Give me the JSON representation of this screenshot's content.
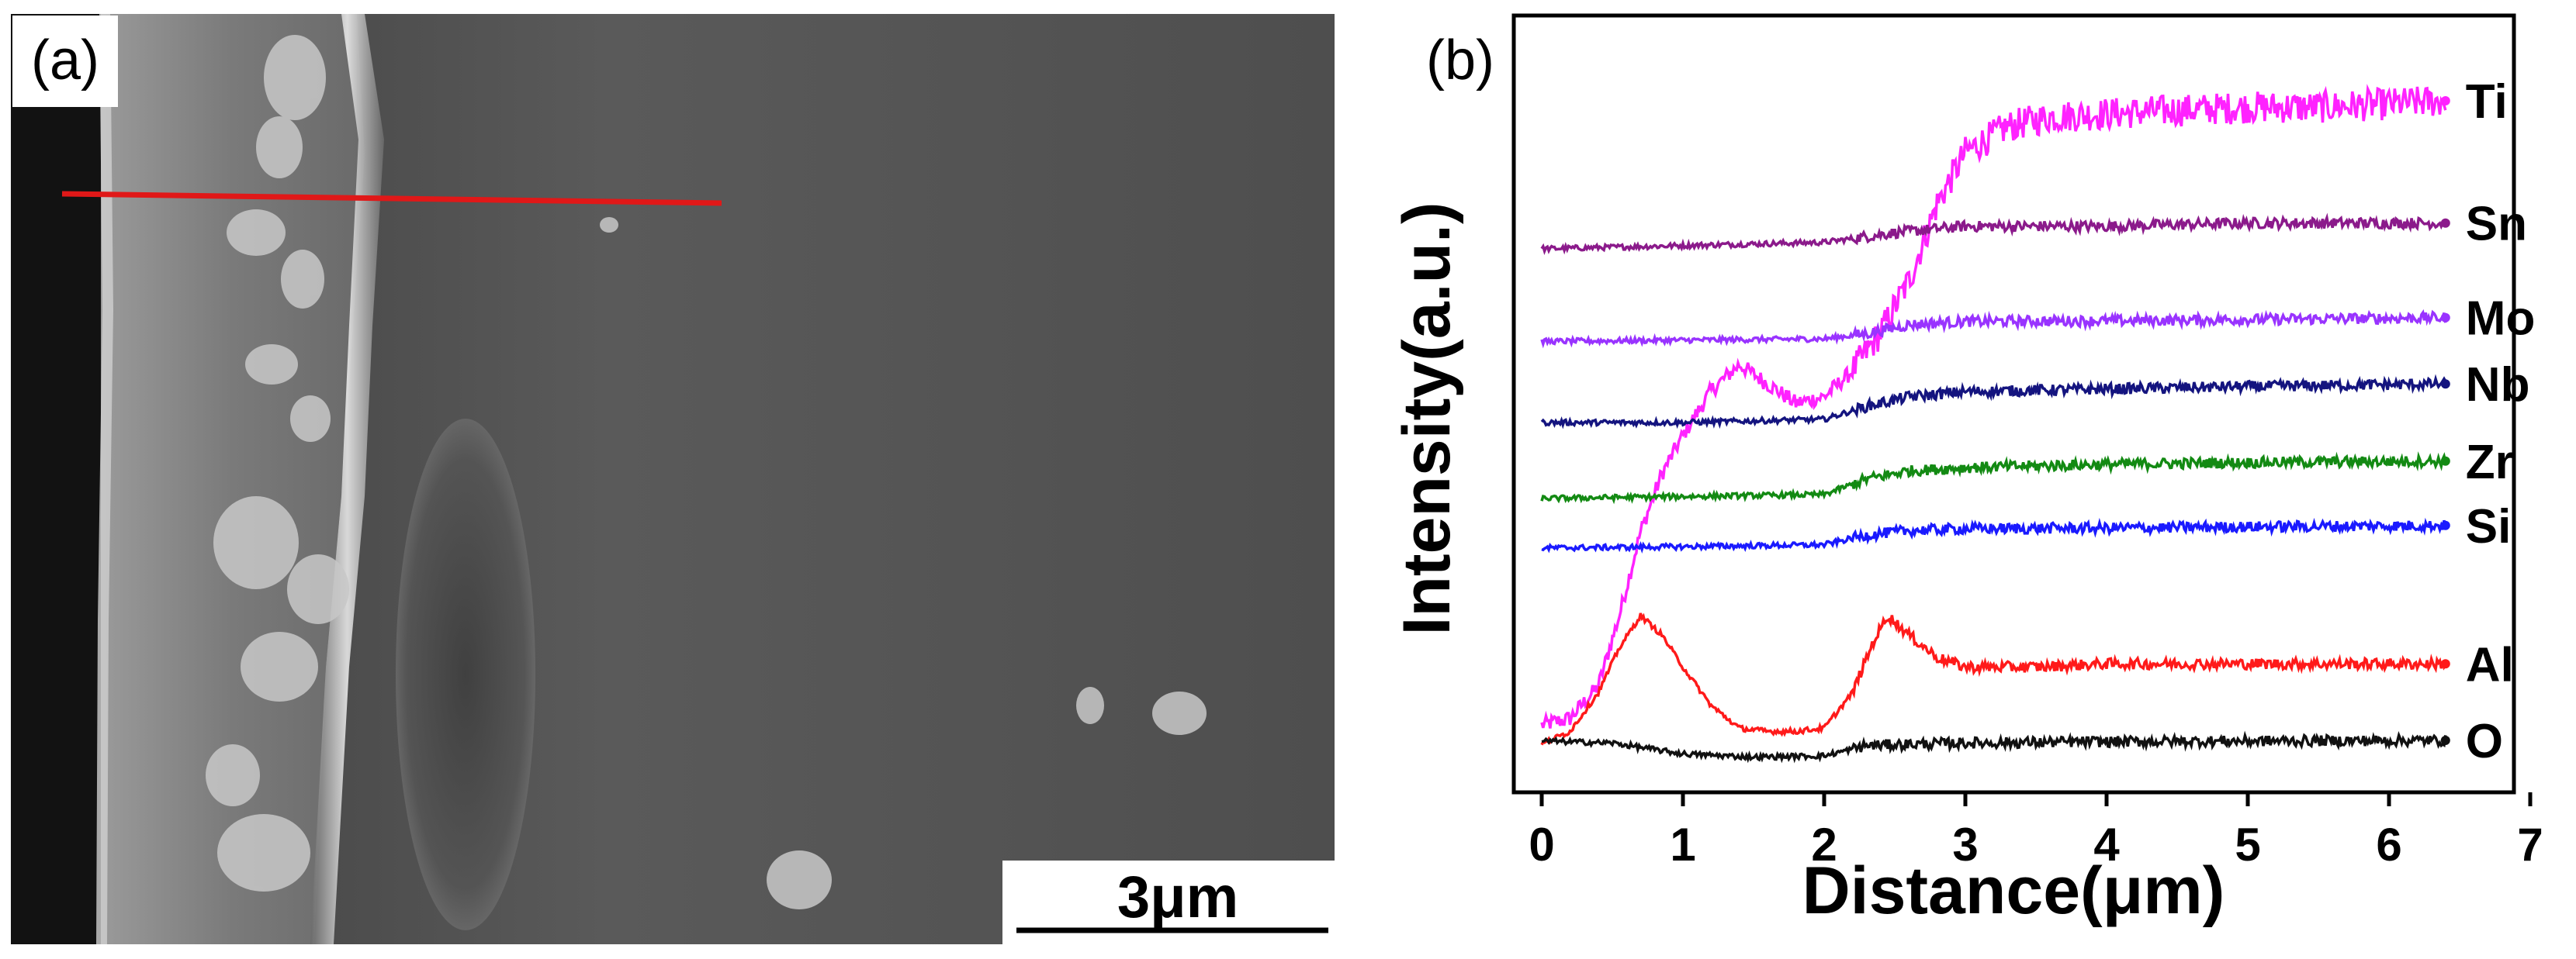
{
  "panels": {
    "a_label": "(a)",
    "b_label": "(b)"
  },
  "sem_image": {
    "scale_bar_label": "3μm",
    "line_scan_color": "#e01818"
  },
  "chart_data": {
    "type": "line",
    "xlabel": "Distance(μm)",
    "ylabel": "Intensity(a.u.)",
    "xlim": [
      0,
      7
    ],
    "xticks": [
      0,
      1,
      2,
      3,
      4,
      5,
      6,
      7
    ],
    "grid": false,
    "legend": "labels at right end of each series",
    "series": [
      {
        "name": "Ti",
        "color": "#ff22ff",
        "points": [
          [
            0,
            0.03
          ],
          [
            0.2,
            0.04
          ],
          [
            0.4,
            0.09
          ],
          [
            0.55,
            0.2
          ],
          [
            0.7,
            0.33
          ],
          [
            0.85,
            0.42
          ],
          [
            1.0,
            0.48
          ],
          [
            1.2,
            0.55
          ],
          [
            1.4,
            0.59
          ],
          [
            1.6,
            0.56
          ],
          [
            1.8,
            0.53
          ],
          [
            2.0,
            0.54
          ],
          [
            2.2,
            0.58
          ],
          [
            2.4,
            0.64
          ],
          [
            2.6,
            0.72
          ],
          [
            2.8,
            0.84
          ],
          [
            3.0,
            0.92
          ],
          [
            3.3,
            0.96
          ],
          [
            3.6,
            0.975
          ],
          [
            4.0,
            0.98
          ],
          [
            4.5,
            0.985
          ],
          [
            5.0,
            0.99
          ],
          [
            5.5,
            0.99
          ],
          [
            6.0,
            0.995
          ],
          [
            6.4,
            1.0
          ]
        ]
      },
      {
        "name": "Sn",
        "color": "#8b1a8b",
        "points": [
          [
            0,
            0.77
          ],
          [
            1.0,
            0.775
          ],
          [
            2.0,
            0.78
          ],
          [
            2.5,
            0.795
          ],
          [
            3.0,
            0.805
          ],
          [
            4.0,
            0.805
          ],
          [
            5.0,
            0.81
          ],
          [
            6.4,
            0.81
          ]
        ]
      },
      {
        "name": "Mo",
        "color": "#9933ff",
        "points": [
          [
            0,
            0.626
          ],
          [
            1.0,
            0.628
          ],
          [
            2.0,
            0.63
          ],
          [
            2.3,
            0.638
          ],
          [
            2.6,
            0.652
          ],
          [
            3.0,
            0.657
          ],
          [
            4.0,
            0.658
          ],
          [
            5.0,
            0.66
          ],
          [
            6.4,
            0.663
          ]
        ]
      },
      {
        "name": "Nb",
        "color": "#14147f",
        "points": [
          [
            0,
            0.5
          ],
          [
            1.0,
            0.5
          ],
          [
            2.0,
            0.505
          ],
          [
            2.3,
            0.525
          ],
          [
            2.6,
            0.54
          ],
          [
            3.0,
            0.548
          ],
          [
            4.0,
            0.552
          ],
          [
            5.0,
            0.556
          ],
          [
            6.4,
            0.56
          ]
        ]
      },
      {
        "name": "Zr",
        "color": "#138a13",
        "points": [
          [
            0,
            0.382
          ],
          [
            1.0,
            0.385
          ],
          [
            2.0,
            0.388
          ],
          [
            2.3,
            0.412
          ],
          [
            2.6,
            0.425
          ],
          [
            3.0,
            0.43
          ],
          [
            4.0,
            0.435
          ],
          [
            5.0,
            0.438
          ],
          [
            6.4,
            0.44
          ]
        ]
      },
      {
        "name": "Si",
        "color": "#1a1aff",
        "points": [
          [
            0,
            0.305
          ],
          [
            1.0,
            0.307
          ],
          [
            2.0,
            0.31
          ],
          [
            2.3,
            0.325
          ],
          [
            2.6,
            0.332
          ],
          [
            3.0,
            0.335
          ],
          [
            4.0,
            0.336
          ],
          [
            5.0,
            0.338
          ],
          [
            6.4,
            0.34
          ]
        ]
      },
      {
        "name": "Al",
        "color": "#ff1a1a",
        "points": [
          [
            0,
            0.0
          ],
          [
            0.2,
            0.02
          ],
          [
            0.4,
            0.08
          ],
          [
            0.55,
            0.15
          ],
          [
            0.7,
            0.2
          ],
          [
            0.85,
            0.17
          ],
          [
            1.0,
            0.12
          ],
          [
            1.2,
            0.06
          ],
          [
            1.4,
            0.025
          ],
          [
            1.6,
            0.02
          ],
          [
            1.8,
            0.02
          ],
          [
            2.0,
            0.025
          ],
          [
            2.2,
            0.08
          ],
          [
            2.35,
            0.16
          ],
          [
            2.45,
            0.2
          ],
          [
            2.6,
            0.17
          ],
          [
            2.8,
            0.135
          ],
          [
            3.0,
            0.12
          ],
          [
            3.5,
            0.12
          ],
          [
            4.0,
            0.125
          ],
          [
            5.0,
            0.125
          ],
          [
            6.4,
            0.125
          ]
        ]
      },
      {
        "name": "O",
        "color": "#111111",
        "points": [
          [
            0,
            0.005
          ],
          [
            0.5,
            0.002
          ],
          [
            1.0,
            -0.015
          ],
          [
            1.5,
            -0.02
          ],
          [
            2.0,
            -0.018
          ],
          [
            2.3,
            -0.002
          ],
          [
            2.6,
            0.0
          ],
          [
            3.0,
            0.002
          ],
          [
            4.0,
            0.004
          ],
          [
            5.0,
            0.005
          ],
          [
            6.4,
            0.006
          ]
        ]
      }
    ]
  }
}
